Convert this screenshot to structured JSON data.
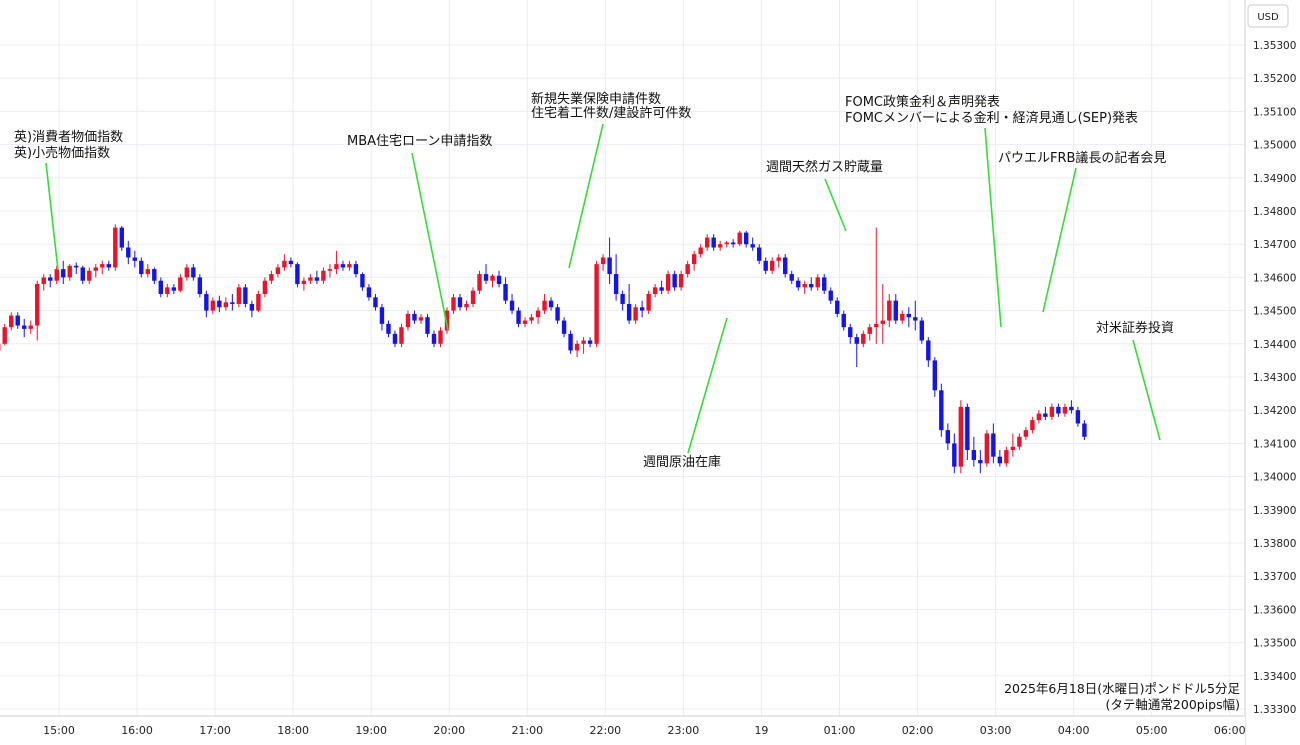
{
  "chart_data": {
    "type": "candlestick",
    "currency_label": "USD",
    "caption_line1": "2025年6月18日(水曜日)ポンドドル5分足",
    "caption_line2": "(タテ軸通常200pips幅)",
    "ylim": [
      1.333,
      1.354
    ],
    "y_ticks": [
      "1.35300",
      "1.35200",
      "1.35100",
      "1.35000",
      "1.34900",
      "1.34800",
      "1.34700",
      "1.34600",
      "1.34500",
      "1.34400",
      "1.34300",
      "1.34200",
      "1.34100",
      "1.34000",
      "1.33900",
      "1.33800",
      "1.33700",
      "1.33600",
      "1.33500",
      "1.33400",
      "1.33300"
    ],
    "x_ticks": [
      "15:00",
      "16:00",
      "17:00",
      "18:00",
      "19:00",
      "20:00",
      "21:00",
      "22:00",
      "23:00",
      "19",
      "01:00",
      "02:00",
      "03:00",
      "04:00",
      "05:00",
      "06:00"
    ],
    "up_color": "#e8142b",
    "down_color": "#1414e6",
    "annotation_color": "#33dd33",
    "annotations": [
      {
        "lines": [
          "英)消費者物価指数",
          "英)小売物価指数"
        ],
        "x": "15:00"
      },
      {
        "lines": [
          "MBA住宅ローン申請指数"
        ],
        "x": "20:00"
      },
      {
        "lines": [
          "新規失業保険申請件数",
          "住宅着工件数/建設許可件数"
        ],
        "x": "21:30"
      },
      {
        "lines": [
          "週間原油在庫"
        ],
        "x": "23:30"
      },
      {
        "lines": [
          "週間天然ガス貯蔵量"
        ],
        "x": "01:00"
      },
      {
        "lines": [
          "FOMC政策金利＆声明発表",
          "FOMCメンバーによる金利・経済見通し(SEP)発表"
        ],
        "x": "03:00"
      },
      {
        "lines": [
          "パウエルFRB議長の記者会見"
        ],
        "x": "03:30"
      },
      {
        "lines": [
          "対米証券投資"
        ],
        "x": "05:00"
      }
    ],
    "candles_note": "5-minute OHLC, 14:00 to 05:55 next day",
    "candles": [
      [
        1.34395,
        1.34405,
        1.34375,
        1.34385
      ],
      [
        1.34385,
        1.344,
        1.3437,
        1.3438
      ],
      [
        1.3438,
        1.3441,
        1.34375,
        1.344
      ],
      [
        1.344,
        1.3446,
        1.34395,
        1.3445
      ],
      [
        1.3445,
        1.34495,
        1.3444,
        1.34485
      ],
      [
        1.34485,
        1.34495,
        1.34445,
        1.34455
      ],
      [
        1.34455,
        1.34475,
        1.3442,
        1.34445
      ],
      [
        1.34445,
        1.3447,
        1.3443,
        1.34455
      ],
      [
        1.34455,
        1.3459,
        1.3441,
        1.3458
      ],
      [
        1.3458,
        1.3461,
        1.3456,
        1.346
      ],
      [
        1.346,
        1.3461,
        1.3457,
        1.3459
      ],
      [
        1.3459,
        1.34635,
        1.3458,
        1.34625
      ],
      [
        1.34625,
        1.3465,
        1.3458,
        1.346
      ],
      [
        1.346,
        1.3464,
        1.3459,
        1.34635
      ],
      [
        1.34635,
        1.34645,
        1.3461,
        1.3463
      ],
      [
        1.3463,
        1.34635,
        1.3458,
        1.3459
      ],
      [
        1.3459,
        1.3463,
        1.3458,
        1.3462
      ],
      [
        1.3462,
        1.3464,
        1.346,
        1.3463
      ],
      [
        1.3463,
        1.3465,
        1.3461,
        1.3464
      ],
      [
        1.3464,
        1.3465,
        1.3462,
        1.3463
      ],
      [
        1.3463,
        1.3476,
        1.3462,
        1.3475
      ],
      [
        1.3475,
        1.34755,
        1.3468,
        1.3469
      ],
      [
        1.3469,
        1.3471,
        1.3464,
        1.3466
      ],
      [
        1.3466,
        1.3468,
        1.3463,
        1.3465
      ],
      [
        1.3465,
        1.3466,
        1.346,
        1.3461
      ],
      [
        1.3461,
        1.3464,
        1.346,
        1.34625
      ],
      [
        1.34625,
        1.3463,
        1.3458,
        1.3459
      ],
      [
        1.3459,
        1.346,
        1.3454,
        1.3455
      ],
      [
        1.3455,
        1.3458,
        1.3454,
        1.3457
      ],
      [
        1.3457,
        1.3458,
        1.3455,
        1.3456
      ],
      [
        1.3456,
        1.3461,
        1.34555,
        1.346
      ],
      [
        1.346,
        1.3464,
        1.3459,
        1.3463
      ],
      [
        1.3463,
        1.3464,
        1.3459,
        1.346
      ],
      [
        1.346,
        1.3461,
        1.3454,
        1.3455
      ],
      [
        1.3455,
        1.3456,
        1.3448,
        1.345
      ],
      [
        1.345,
        1.3454,
        1.3449,
        1.3453
      ],
      [
        1.3453,
        1.34545,
        1.34495,
        1.3451
      ],
      [
        1.3451,
        1.3454,
        1.345,
        1.34525
      ],
      [
        1.34525,
        1.3455,
        1.345,
        1.3452
      ],
      [
        1.3452,
        1.3458,
        1.3451,
        1.3457
      ],
      [
        1.3457,
        1.3458,
        1.3451,
        1.3452
      ],
      [
        1.3452,
        1.3453,
        1.3448,
        1.345
      ],
      [
        1.345,
        1.3456,
        1.34495,
        1.3455
      ],
      [
        1.3455,
        1.346,
        1.3454,
        1.3459
      ],
      [
        1.3459,
        1.3462,
        1.3458,
        1.3461
      ],
      [
        1.3461,
        1.3464,
        1.346,
        1.3463
      ],
      [
        1.3463,
        1.3467,
        1.3462,
        1.3465
      ],
      [
        1.3465,
        1.3466,
        1.3463,
        1.3464
      ],
      [
        1.3464,
        1.34645,
        1.3457,
        1.3458
      ],
      [
        1.3458,
        1.346,
        1.3456,
        1.3459
      ],
      [
        1.3459,
        1.3461,
        1.3458,
        1.346
      ],
      [
        1.346,
        1.3462,
        1.3458,
        1.3459
      ],
      [
        1.3459,
        1.3463,
        1.3458,
        1.3462
      ],
      [
        1.3462,
        1.3464,
        1.346,
        1.34625
      ],
      [
        1.34625,
        1.3468,
        1.3461,
        1.3464
      ],
      [
        1.3464,
        1.3465,
        1.3462,
        1.3463
      ],
      [
        1.3463,
        1.3465,
        1.3462,
        1.3464
      ],
      [
        1.3464,
        1.3465,
        1.346,
        1.3461
      ],
      [
        1.3461,
        1.34615,
        1.3456,
        1.3457
      ],
      [
        1.3457,
        1.3458,
        1.3453,
        1.3454
      ],
      [
        1.3454,
        1.3455,
        1.345,
        1.3451
      ],
      [
        1.3451,
        1.3452,
        1.3444,
        1.3446
      ],
      [
        1.3446,
        1.3447,
        1.3442,
        1.3443
      ],
      [
        1.3443,
        1.3444,
        1.3439,
        1.344
      ],
      [
        1.344,
        1.3446,
        1.3439,
        1.3445
      ],
      [
        1.3445,
        1.345,
        1.3444,
        1.3449
      ],
      [
        1.3449,
        1.345,
        1.3446,
        1.3447
      ],
      [
        1.3447,
        1.3449,
        1.3446,
        1.3448
      ],
      [
        1.3448,
        1.3449,
        1.3442,
        1.3443
      ],
      [
        1.3443,
        1.3444,
        1.3439,
        1.344
      ],
      [
        1.344,
        1.3445,
        1.3439,
        1.3444
      ],
      [
        1.3444,
        1.3451,
        1.3443,
        1.345
      ],
      [
        1.345,
        1.3455,
        1.3449,
        1.3454
      ],
      [
        1.3454,
        1.3455,
        1.345,
        1.3451
      ],
      [
        1.3451,
        1.3453,
        1.345,
        1.3452
      ],
      [
        1.3452,
        1.3457,
        1.3451,
        1.3456
      ],
      [
        1.3456,
        1.3462,
        1.3455,
        1.3461
      ],
      [
        1.3461,
        1.3464,
        1.3458,
        1.3459
      ],
      [
        1.3459,
        1.3461,
        1.3457,
        1.34605
      ],
      [
        1.34605,
        1.3462,
        1.3457,
        1.3458
      ],
      [
        1.3458,
        1.346,
        1.3452,
        1.3453
      ],
      [
        1.3453,
        1.3455,
        1.3449,
        1.345
      ],
      [
        1.345,
        1.3451,
        1.3445,
        1.3446
      ],
      [
        1.3446,
        1.3448,
        1.3445,
        1.3447
      ],
      [
        1.3447,
        1.3449,
        1.3446,
        1.3448
      ],
      [
        1.3448,
        1.3451,
        1.3446,
        1.345
      ],
      [
        1.345,
        1.3455,
        1.3449,
        1.3453
      ],
      [
        1.3453,
        1.3454,
        1.345,
        1.3451
      ],
      [
        1.3451,
        1.3452,
        1.3446,
        1.3447
      ],
      [
        1.3447,
        1.3448,
        1.3442,
        1.3443
      ],
      [
        1.3443,
        1.3444,
        1.3437,
        1.3438
      ],
      [
        1.3438,
        1.3441,
        1.3436,
        1.344
      ],
      [
        1.344,
        1.3442,
        1.3437,
        1.3441
      ],
      [
        1.3441,
        1.3442,
        1.3439,
        1.344
      ],
      [
        1.344,
        1.3465,
        1.3439,
        1.3464
      ],
      [
        1.3464,
        1.3467,
        1.3462,
        1.3466
      ],
      [
        1.3466,
        1.3472,
        1.3458,
        1.3461
      ],
      [
        1.3461,
        1.3467,
        1.3453,
        1.3455
      ],
      [
        1.3455,
        1.3456,
        1.345,
        1.3452
      ],
      [
        1.3452,
        1.3458,
        1.3446,
        1.3447
      ],
      [
        1.3447,
        1.3452,
        1.3446,
        1.3451
      ],
      [
        1.3451,
        1.3453,
        1.3448,
        1.345
      ],
      [
        1.345,
        1.3456,
        1.3449,
        1.3455
      ],
      [
        1.3455,
        1.3458,
        1.3454,
        1.3457
      ],
      [
        1.3457,
        1.3459,
        1.3455,
        1.3456
      ],
      [
        1.3456,
        1.3462,
        1.3455,
        1.3461
      ],
      [
        1.3461,
        1.3462,
        1.3456,
        1.3457
      ],
      [
        1.3457,
        1.3462,
        1.3456,
        1.3461
      ],
      [
        1.3461,
        1.3465,
        1.346,
        1.3464
      ],
      [
        1.3464,
        1.3468,
        1.3462,
        1.3467
      ],
      [
        1.3467,
        1.347,
        1.3466,
        1.3469
      ],
      [
        1.3469,
        1.3473,
        1.3468,
        1.3472
      ],
      [
        1.3472,
        1.3473,
        1.3468,
        1.3469
      ],
      [
        1.3469,
        1.3471,
        1.3468,
        1.347
      ],
      [
        1.347,
        1.3471,
        1.3469,
        1.34705
      ],
      [
        1.34705,
        1.34715,
        1.3469,
        1.347
      ],
      [
        1.347,
        1.3474,
        1.34695,
        1.34735
      ],
      [
        1.34735,
        1.3474,
        1.3469,
        1.347
      ],
      [
        1.347,
        1.3472,
        1.3468,
        1.3469
      ],
      [
        1.3469,
        1.347,
        1.3464,
        1.3465
      ],
      [
        1.3465,
        1.3466,
        1.3461,
        1.3462
      ],
      [
        1.3462,
        1.3466,
        1.3461,
        1.3465
      ],
      [
        1.3465,
        1.3467,
        1.3463,
        1.3466
      ],
      [
        1.3466,
        1.3467,
        1.346,
        1.3461
      ],
      [
        1.3461,
        1.3462,
        1.3458,
        1.3459
      ],
      [
        1.3459,
        1.346,
        1.3456,
        1.3457
      ],
      [
        1.3457,
        1.3459,
        1.3455,
        1.3458
      ],
      [
        1.3458,
        1.346,
        1.3456,
        1.3457
      ],
      [
        1.3457,
        1.3461,
        1.3456,
        1.346
      ],
      [
        1.346,
        1.3461,
        1.3455,
        1.3456
      ],
      [
        1.3456,
        1.3457,
        1.3452,
        1.3453
      ],
      [
        1.3453,
        1.3454,
        1.3448,
        1.3449
      ],
      [
        1.3449,
        1.345,
        1.3444,
        1.3445
      ],
      [
        1.3445,
        1.3446,
        1.344,
        1.3442
      ],
      [
        1.3442,
        1.3443,
        1.3433,
        1.344
      ],
      [
        1.344,
        1.3444,
        1.3439,
        1.3443
      ],
      [
        1.3443,
        1.3446,
        1.3441,
        1.3445
      ],
      [
        1.3445,
        1.3475,
        1.344,
        1.3446
      ],
      [
        1.3446,
        1.3458,
        1.344,
        1.3447
      ],
      [
        1.3447,
        1.3455,
        1.3445,
        1.3453
      ],
      [
        1.3453,
        1.3455,
        1.3446,
        1.3447
      ],
      [
        1.3447,
        1.345,
        1.3446,
        1.3449
      ],
      [
        1.3449,
        1.3451,
        1.3445,
        1.3448
      ],
      [
        1.3448,
        1.3453,
        1.3444,
        1.3447
      ],
      [
        1.3447,
        1.3448,
        1.344,
        1.3441
      ],
      [
        1.3441,
        1.3442,
        1.3433,
        1.3435
      ],
      [
        1.3435,
        1.3436,
        1.3424,
        1.3426
      ],
      [
        1.3426,
        1.3428,
        1.3412,
        1.3414
      ],
      [
        1.3414,
        1.3416,
        1.3408,
        1.341
      ],
      [
        1.341,
        1.3413,
        1.3401,
        1.3403
      ],
      [
        1.3403,
        1.3423,
        1.3401,
        1.3421
      ],
      [
        1.3421,
        1.3422,
        1.3405,
        1.3408
      ],
      [
        1.3408,
        1.3412,
        1.3403,
        1.3405
      ],
      [
        1.3405,
        1.3408,
        1.3401,
        1.3404
      ],
      [
        1.3404,
        1.3414,
        1.3403,
        1.3413
      ],
      [
        1.3413,
        1.3416,
        1.3404,
        1.3406
      ],
      [
        1.3406,
        1.3408,
        1.3403,
        1.3404
      ],
      [
        1.3404,
        1.3409,
        1.3403,
        1.3408
      ],
      [
        1.3408,
        1.3413,
        1.3406,
        1.3409
      ],
      [
        1.3409,
        1.3413,
        1.3408,
        1.3412
      ],
      [
        1.3412,
        1.3415,
        1.3411,
        1.3414
      ],
      [
        1.3414,
        1.3418,
        1.3413,
        1.3417
      ],
      [
        1.3417,
        1.342,
        1.3416,
        1.3419
      ],
      [
        1.3419,
        1.3421,
        1.3417,
        1.3418
      ],
      [
        1.3418,
        1.3422,
        1.3417,
        1.3421
      ],
      [
        1.3421,
        1.3422,
        1.3418,
        1.3419
      ],
      [
        1.3419,
        1.3422,
        1.3418,
        1.3421
      ],
      [
        1.3421,
        1.3423,
        1.3419,
        1.342
      ],
      [
        1.342,
        1.3421,
        1.3415,
        1.3416
      ],
      [
        1.3416,
        1.3417,
        1.3411,
        1.3412
      ]
    ]
  }
}
